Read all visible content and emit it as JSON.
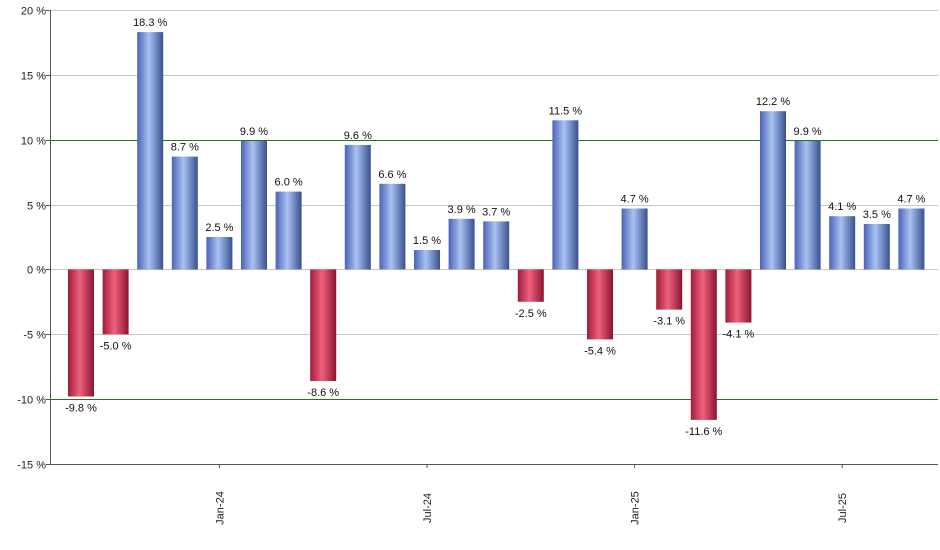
{
  "chart_data": {
    "type": "bar",
    "title": "",
    "xlabel": "",
    "ylabel": "",
    "ylim": [
      -15,
      20
    ],
    "yticks": [
      -15,
      -10,
      -5,
      0,
      5,
      10,
      15,
      20
    ],
    "ytick_labels": [
      "-15 %",
      "-10 %",
      "-5 %",
      "0 %",
      "5 %",
      "10 %",
      "15 %",
      "20 %"
    ],
    "highlight_lines": [
      10,
      -10
    ],
    "grid": true,
    "x_tick_labels": [
      {
        "label": "Jan-24",
        "bar_index": 4
      },
      {
        "label": "Jul-24",
        "bar_index": 10
      },
      {
        "label": "Jan-25",
        "bar_index": 16
      },
      {
        "label": "Jul-25",
        "bar_index": 22
      }
    ],
    "values": [
      -9.8,
      -5.0,
      18.3,
      8.7,
      2.5,
      9.9,
      6.0,
      -8.6,
      9.6,
      6.6,
      1.5,
      3.9,
      3.7,
      -2.5,
      11.5,
      -5.4,
      4.7,
      -3.1,
      -11.6,
      -4.1,
      12.2,
      9.9,
      4.1,
      3.5,
      4.7
    ],
    "labels": [
      "-9.8 %",
      "-5.0 %",
      "18.3 %",
      "8.7 %",
      "2.5 %",
      "9.9 %",
      "6.0 %",
      "-8.6 %",
      "9.6 %",
      "6.6 %",
      "1.5 %",
      "3.9 %",
      "3.7 %",
      "-2.5 %",
      "11.5 %",
      "-5.4 %",
      "4.7 %",
      "-3.1 %",
      "-11.6 %",
      "-4.1 %",
      "12.2 %",
      "9.9 %",
      "4.1 %",
      "3.5 %",
      "4.7 %"
    ],
    "colors": {
      "positive": "#6f8fd8",
      "negative": "#d23a5a",
      "grid": "#c8c8c8",
      "highlight": "#1a7a1a",
      "axis": "#555555"
    }
  }
}
